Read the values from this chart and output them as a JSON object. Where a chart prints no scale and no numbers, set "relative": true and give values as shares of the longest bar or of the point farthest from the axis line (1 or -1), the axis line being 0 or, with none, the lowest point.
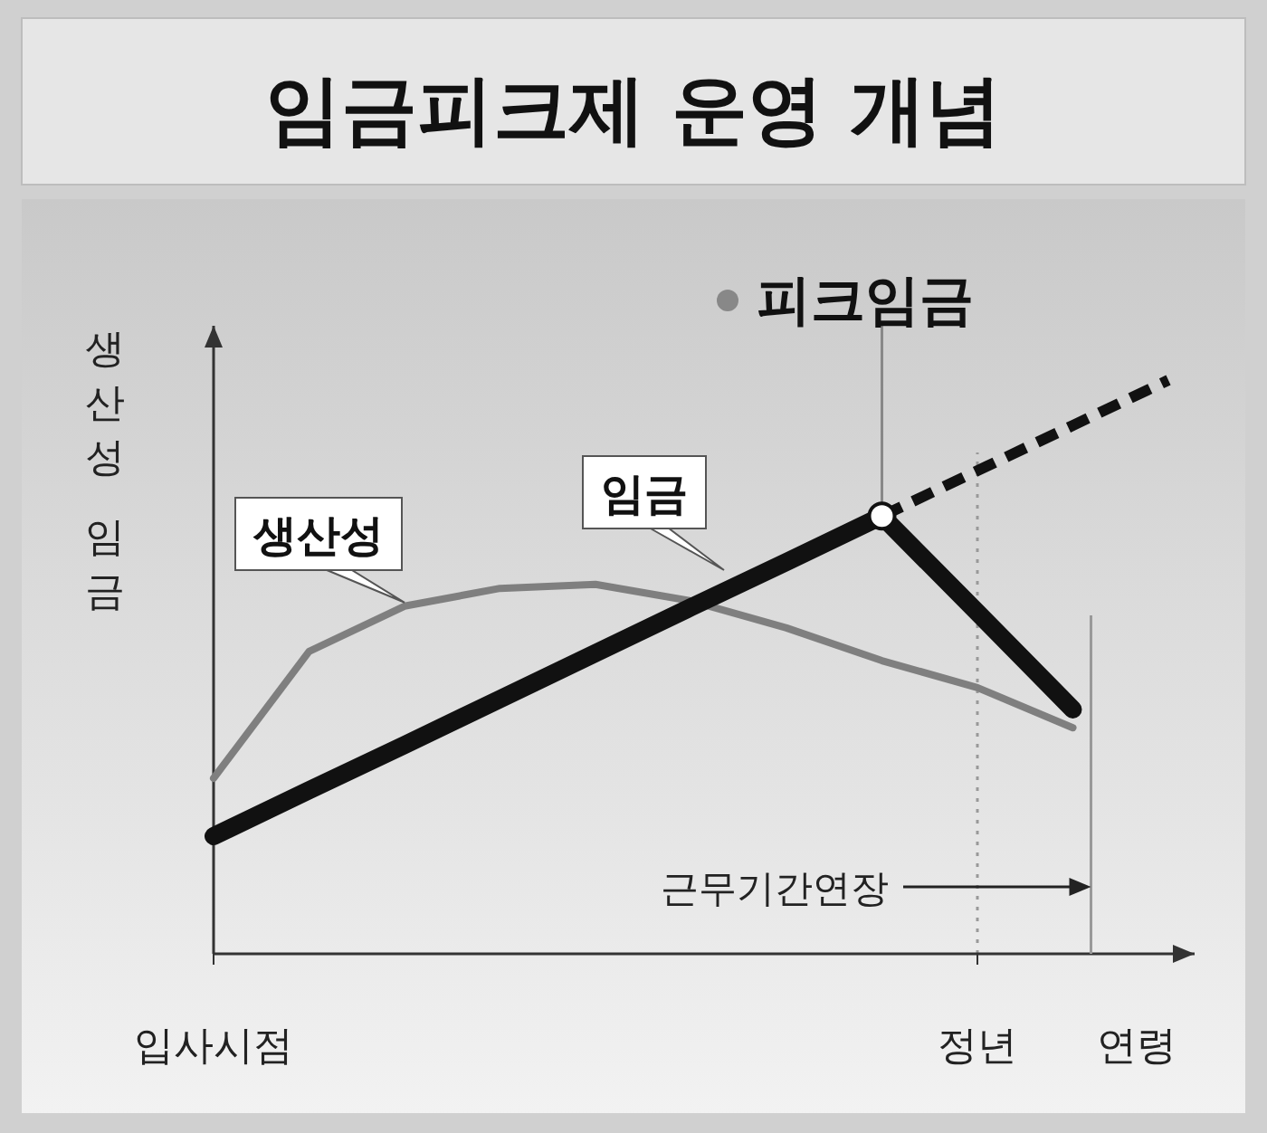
{
  "chart_data": {
    "type": "line",
    "title": "임금피크제 운영 개념",
    "ylabel": "생산성 임금",
    "xlabel": "연령",
    "relative": true,
    "categories": [
      "입사시점",
      null,
      null,
      null,
      null,
      null,
      null,
      null,
      "정년",
      null,
      null
    ],
    "series": [
      {
        "name": "생산성",
        "color": "#7f7f7f",
        "line_style": "solid",
        "values": [
          0.306,
          0.527,
          0.606,
          0.637,
          0.644,
          0.615,
          0.568,
          0.511,
          0.464,
          0.394,
          null
        ]
      },
      {
        "name": "임금",
        "color": "#111111",
        "line_style": "solid",
        "values": [
          0.205,
          0.285,
          0.364,
          0.444,
          0.524,
          0.604,
          0.683,
          0.763,
          0.595,
          0.426,
          null
        ]
      },
      {
        "color": "#111111",
        "line_style": "dashed",
        "values": [
          null,
          null,
          null,
          null,
          null,
          null,
          null,
          0.763,
          0.842,
          0.921,
          1.0
        ]
      }
    ],
    "ref_lines": [
      {
        "axis": "x",
        "value": "정년",
        "line_style": "dotted",
        "color": "#999999"
      }
    ],
    "annotations": [
      "피크임금",
      "근무기간연장"
    ]
  }
}
